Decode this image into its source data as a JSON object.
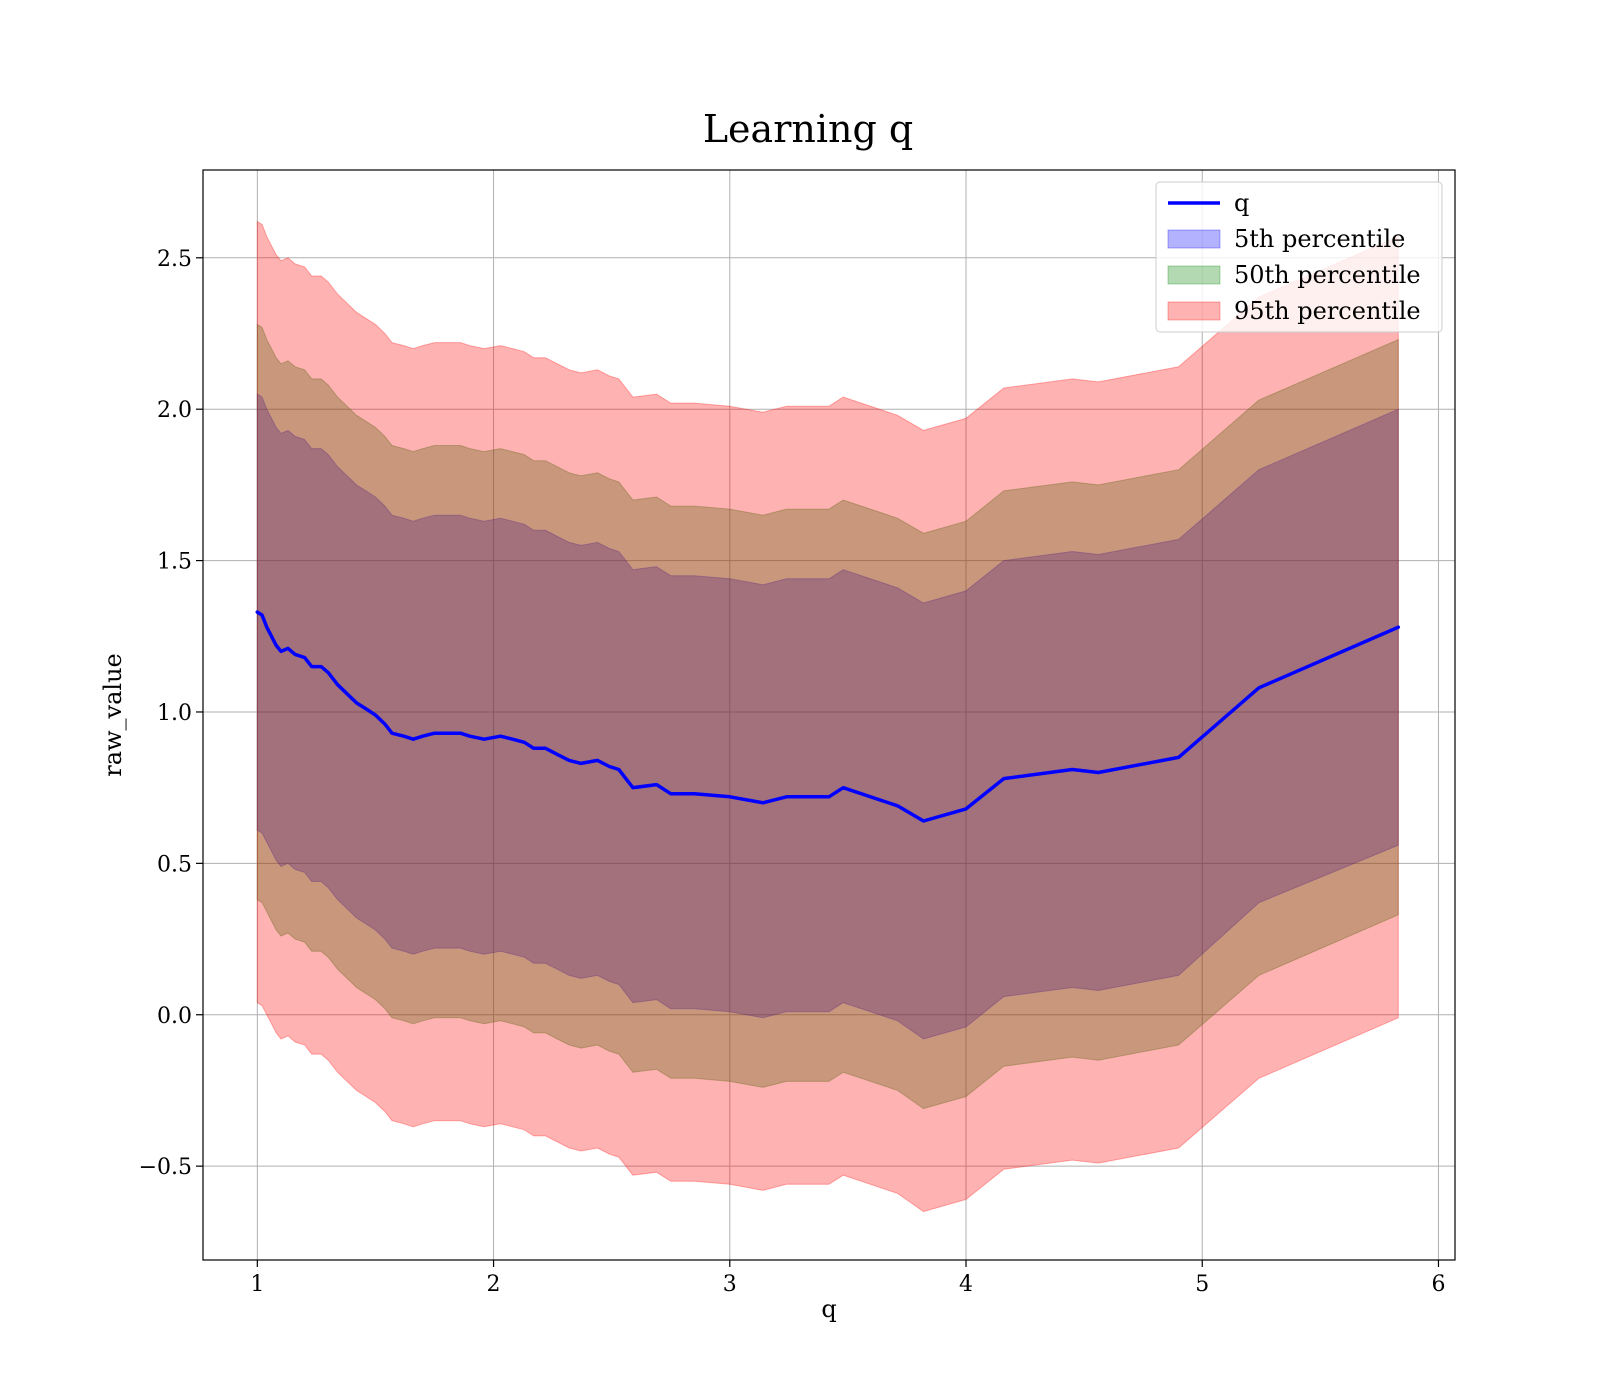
{
  "chart_data": {
    "type": "line",
    "title": "Learning q",
    "xlabel": "q",
    "ylabel": "raw_value",
    "xlim": [
      0.77,
      6.07
    ],
    "ylim": [
      -0.81,
      2.79
    ],
    "xticks": [
      1,
      2,
      3,
      4,
      5,
      6
    ],
    "xtick_labels": [
      "1",
      "2",
      "3",
      "4",
      "5",
      "6"
    ],
    "yticks": [
      -0.5,
      0.0,
      0.5,
      1.0,
      1.5,
      2.0,
      2.5
    ],
    "ytick_labels": [
      "−0.5",
      "0.0",
      "0.5",
      "1.0",
      "1.5",
      "2.0",
      "2.5"
    ],
    "grid": true,
    "legend_position": "upper right",
    "x": [
      1.0,
      1.02,
      1.04,
      1.06,
      1.08,
      1.1,
      1.13,
      1.16,
      1.2,
      1.23,
      1.27,
      1.3,
      1.34,
      1.38,
      1.42,
      1.46,
      1.5,
      1.54,
      1.57,
      1.62,
      1.66,
      1.7,
      1.75,
      1.8,
      1.86,
      1.9,
      1.96,
      2.03,
      2.08,
      2.13,
      2.17,
      2.22,
      2.27,
      2.32,
      2.37,
      2.44,
      2.49,
      2.53,
      2.59,
      2.69,
      2.75,
      2.85,
      3.0,
      3.14,
      3.24,
      3.42,
      3.48,
      3.71,
      3.82,
      4.0,
      4.16,
      4.45,
      4.56,
      4.9,
      5.24,
      5.83
    ],
    "series": [
      {
        "name": "q",
        "kind": "line",
        "color": "#0000ff",
        "values": [
          1.33,
          1.32,
          1.28,
          1.25,
          1.22,
          1.2,
          1.21,
          1.19,
          1.18,
          1.15,
          1.15,
          1.13,
          1.09,
          1.06,
          1.03,
          1.01,
          0.99,
          0.96,
          0.93,
          0.92,
          0.91,
          0.92,
          0.93,
          0.93,
          0.93,
          0.92,
          0.91,
          0.92,
          0.91,
          0.9,
          0.88,
          0.88,
          0.86,
          0.84,
          0.83,
          0.84,
          0.82,
          0.81,
          0.75,
          0.76,
          0.73,
          0.73,
          0.72,
          0.7,
          0.72,
          0.72,
          0.75,
          0.69,
          0.64,
          0.68,
          0.78,
          0.81,
          0.8,
          0.85,
          1.08,
          1.28
        ]
      },
      {
        "name": "5th percentile",
        "kind": "band",
        "color": "#0000ff",
        "alpha": 0.3,
        "lower": [
          0.61,
          0.6,
          0.57,
          0.54,
          0.51,
          0.49,
          0.5,
          0.48,
          0.47,
          0.44,
          0.44,
          0.42,
          0.38,
          0.35,
          0.32,
          0.3,
          0.28,
          0.25,
          0.22,
          0.21,
          0.2,
          0.21,
          0.22,
          0.22,
          0.22,
          0.21,
          0.2,
          0.21,
          0.2,
          0.19,
          0.17,
          0.17,
          0.15,
          0.13,
          0.12,
          0.13,
          0.11,
          0.1,
          0.04,
          0.05,
          0.02,
          0.02,
          0.01,
          -0.01,
          0.01,
          0.01,
          0.04,
          -0.02,
          -0.08,
          -0.04,
          0.06,
          0.09,
          0.08,
          0.13,
          0.37,
          0.56
        ],
        "upper": [
          2.05,
          2.04,
          2.0,
          1.97,
          1.94,
          1.92,
          1.93,
          1.91,
          1.9,
          1.87,
          1.87,
          1.85,
          1.81,
          1.78,
          1.75,
          1.73,
          1.71,
          1.68,
          1.65,
          1.64,
          1.63,
          1.64,
          1.65,
          1.65,
          1.65,
          1.64,
          1.63,
          1.64,
          1.63,
          1.62,
          1.6,
          1.6,
          1.58,
          1.56,
          1.55,
          1.56,
          1.54,
          1.53,
          1.47,
          1.48,
          1.45,
          1.45,
          1.44,
          1.42,
          1.44,
          1.44,
          1.47,
          1.41,
          1.36,
          1.4,
          1.5,
          1.53,
          1.52,
          1.57,
          1.8,
          2.0
        ]
      },
      {
        "name": "50th percentile",
        "kind": "band",
        "color": "#008000",
        "alpha": 0.3,
        "lower": [
          0.38,
          0.37,
          0.34,
          0.31,
          0.28,
          0.26,
          0.27,
          0.25,
          0.24,
          0.21,
          0.21,
          0.19,
          0.15,
          0.12,
          0.09,
          0.07,
          0.05,
          0.02,
          -0.01,
          -0.02,
          -0.03,
          -0.02,
          -0.01,
          -0.01,
          -0.01,
          -0.02,
          -0.03,
          -0.02,
          -0.03,
          -0.04,
          -0.06,
          -0.06,
          -0.08,
          -0.1,
          -0.11,
          -0.1,
          -0.12,
          -0.13,
          -0.19,
          -0.18,
          -0.21,
          -0.21,
          -0.22,
          -0.24,
          -0.22,
          -0.22,
          -0.19,
          -0.25,
          -0.31,
          -0.27,
          -0.17,
          -0.14,
          -0.15,
          -0.1,
          0.13,
          0.33
        ],
        "upper": [
          2.28,
          2.27,
          2.23,
          2.2,
          2.17,
          2.15,
          2.16,
          2.14,
          2.13,
          2.1,
          2.1,
          2.08,
          2.04,
          2.01,
          1.98,
          1.96,
          1.94,
          1.91,
          1.88,
          1.87,
          1.86,
          1.87,
          1.88,
          1.88,
          1.88,
          1.87,
          1.86,
          1.87,
          1.86,
          1.85,
          1.83,
          1.83,
          1.81,
          1.79,
          1.78,
          1.79,
          1.77,
          1.76,
          1.7,
          1.71,
          1.68,
          1.68,
          1.67,
          1.65,
          1.67,
          1.67,
          1.7,
          1.64,
          1.59,
          1.63,
          1.73,
          1.76,
          1.75,
          1.8,
          2.03,
          2.23
        ]
      },
      {
        "name": "95th percentile",
        "kind": "band",
        "color": "#ff0000",
        "alpha": 0.3,
        "lower": [
          0.04,
          0.03,
          0.0,
          -0.03,
          -0.06,
          -0.08,
          -0.07,
          -0.09,
          -0.1,
          -0.13,
          -0.13,
          -0.15,
          -0.19,
          -0.22,
          -0.25,
          -0.27,
          -0.29,
          -0.32,
          -0.35,
          -0.36,
          -0.37,
          -0.36,
          -0.35,
          -0.35,
          -0.35,
          -0.36,
          -0.37,
          -0.36,
          -0.37,
          -0.38,
          -0.4,
          -0.4,
          -0.42,
          -0.44,
          -0.45,
          -0.44,
          -0.46,
          -0.47,
          -0.53,
          -0.52,
          -0.55,
          -0.55,
          -0.56,
          -0.58,
          -0.56,
          -0.56,
          -0.53,
          -0.59,
          -0.65,
          -0.61,
          -0.51,
          -0.48,
          -0.49,
          -0.44,
          -0.21,
          -0.01
        ],
        "upper": [
          2.62,
          2.61,
          2.57,
          2.54,
          2.51,
          2.49,
          2.5,
          2.48,
          2.47,
          2.44,
          2.44,
          2.42,
          2.38,
          2.35,
          2.32,
          2.3,
          2.28,
          2.25,
          2.22,
          2.21,
          2.2,
          2.21,
          2.22,
          2.22,
          2.22,
          2.21,
          2.2,
          2.21,
          2.2,
          2.19,
          2.17,
          2.17,
          2.15,
          2.13,
          2.12,
          2.13,
          2.11,
          2.1,
          2.04,
          2.05,
          2.02,
          2.02,
          2.01,
          1.99,
          2.01,
          2.01,
          2.04,
          1.98,
          1.93,
          1.97,
          2.07,
          2.1,
          2.09,
          2.14,
          2.37,
          2.57
        ]
      }
    ]
  }
}
